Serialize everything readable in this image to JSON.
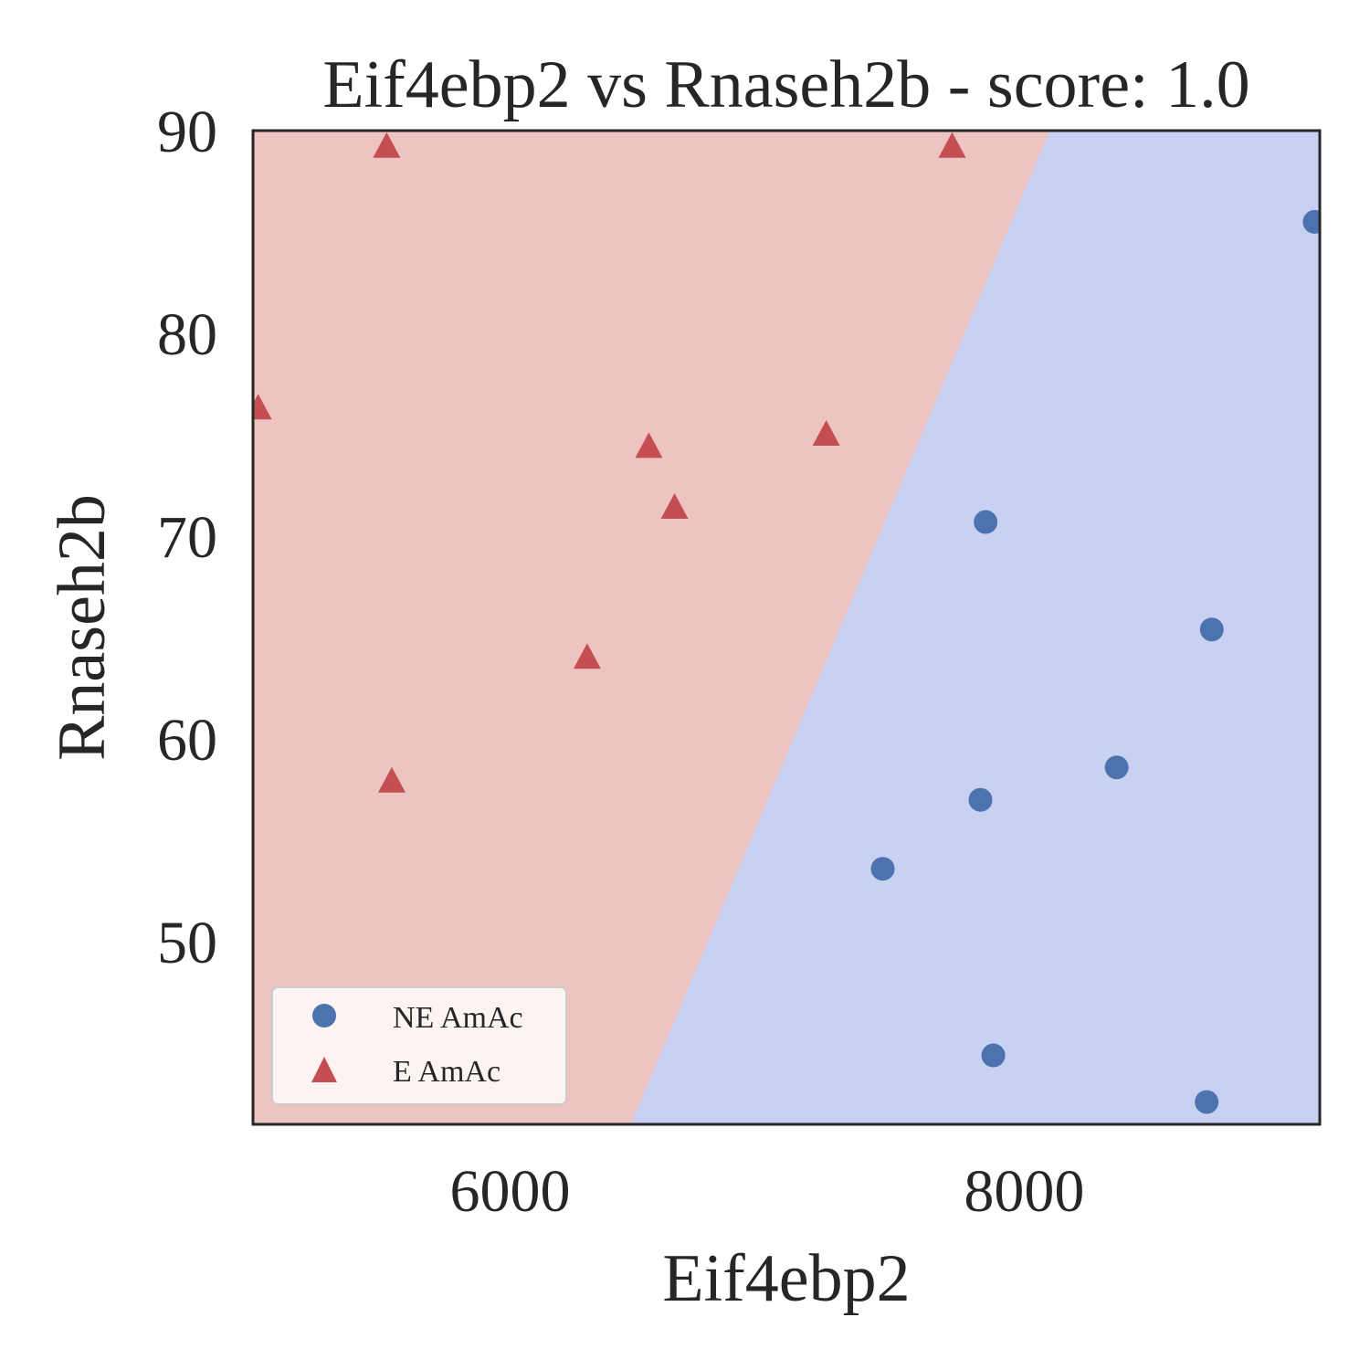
{
  "chart_data": {
    "type": "scatter",
    "title": "Eif4ebp2 vs Rnaseh2b - score: 1.0",
    "xlabel": "Eif4ebp2",
    "ylabel": "Rnaseh2b",
    "xlim": [
      5000,
      9150
    ],
    "ylim": [
      41,
      90
    ],
    "xticks": [
      6000,
      8000
    ],
    "yticks": [
      50,
      60,
      70,
      80,
      90
    ],
    "grid": false,
    "legend_position": "lower-left",
    "decision_boundary": {
      "points": [
        [
          6470,
          41
        ],
        [
          8100,
          90
        ]
      ],
      "left_region_class": "E AmAc",
      "right_region_class": "NE AmAc"
    },
    "series": [
      {
        "name": "NE AmAc",
        "marker": "circle",
        "color": "#4C72B0",
        "region_color": "#C9D1F2",
        "points": [
          [
            9130,
            85.5
          ],
          [
            7850,
            70.7
          ],
          [
            8730,
            65.4
          ],
          [
            8360,
            58.6
          ],
          [
            7830,
            57.0
          ],
          [
            7450,
            53.6
          ],
          [
            7880,
            44.4
          ],
          [
            8710,
            42.1
          ]
        ]
      },
      {
        "name": "E AmAc",
        "marker": "triangle",
        "color": "#C44E52",
        "region_color": "#EEC4C3",
        "points": [
          [
            5520,
            89.2
          ],
          [
            7720,
            89.2
          ],
          [
            5020,
            76.3
          ],
          [
            6540,
            74.4
          ],
          [
            7230,
            75.0
          ],
          [
            6640,
            71.4
          ],
          [
            6300,
            64.0
          ],
          [
            5540,
            57.9
          ]
        ]
      }
    ]
  }
}
